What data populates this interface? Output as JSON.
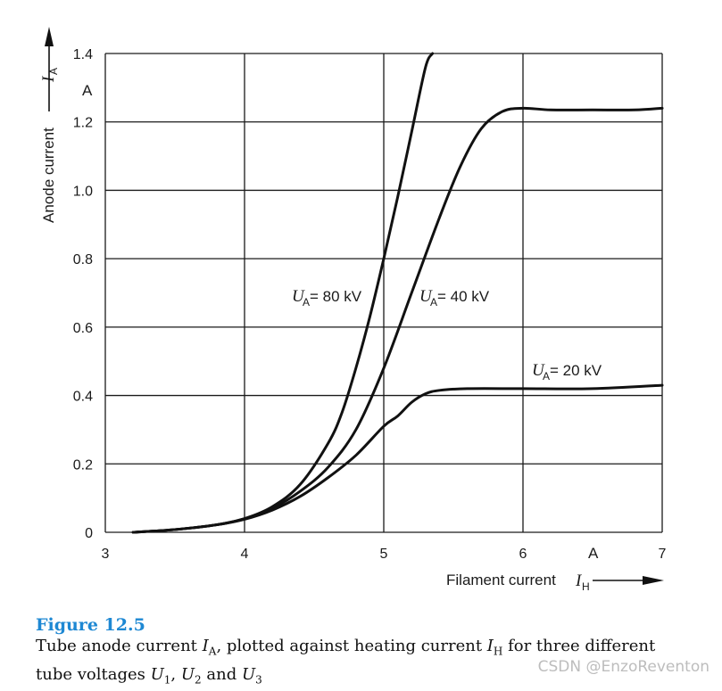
{
  "chart_data": {
    "type": "line",
    "title": "",
    "xlabel": "Filament current",
    "xlabel_symbol": "I",
    "xlabel_sub": "H",
    "x_unit": "A",
    "ylabel": "Anode current",
    "ylabel_symbol": "I",
    "ylabel_sub": "A",
    "y_unit": "A",
    "xlim": [
      3,
      7
    ],
    "ylim": [
      0,
      1.4
    ],
    "x_ticks": [
      "3",
      "4",
      "5",
      "6",
      "7"
    ],
    "y_ticks": [
      "0",
      "0.2",
      "0.4",
      "0.6",
      "0.8",
      "1.0",
      "1.2",
      "1.4"
    ],
    "grid": true,
    "series": [
      {
        "name": "UA = 80 kV",
        "label_var": "U",
        "label_sub": "A",
        "label_rest": " = 80 kV",
        "points": [
          [
            3.2,
            0.0
          ],
          [
            3.5,
            0.008
          ],
          [
            3.8,
            0.022
          ],
          [
            4.0,
            0.04
          ],
          [
            4.2,
            0.075
          ],
          [
            4.4,
            0.14
          ],
          [
            4.6,
            0.26
          ],
          [
            4.7,
            0.35
          ],
          [
            4.8,
            0.48
          ],
          [
            4.9,
            0.63
          ],
          [
            5.0,
            0.8
          ],
          [
            5.1,
            0.98
          ],
          [
            5.2,
            1.17
          ],
          [
            5.3,
            1.36
          ],
          [
            5.35,
            1.4
          ]
        ]
      },
      {
        "name": "UA = 40 kV",
        "label_var": "U",
        "label_sub": "A",
        "label_rest": " = 40 kV",
        "points": [
          [
            3.2,
            0.0
          ],
          [
            3.5,
            0.008
          ],
          [
            3.8,
            0.022
          ],
          [
            4.0,
            0.04
          ],
          [
            4.2,
            0.07
          ],
          [
            4.4,
            0.12
          ],
          [
            4.6,
            0.19
          ],
          [
            4.8,
            0.3
          ],
          [
            5.0,
            0.48
          ],
          [
            5.2,
            0.7
          ],
          [
            5.4,
            0.92
          ],
          [
            5.55,
            1.07
          ],
          [
            5.7,
            1.18
          ],
          [
            5.85,
            1.23
          ],
          [
            6.0,
            1.24
          ],
          [
            6.2,
            1.235
          ],
          [
            6.5,
            1.235
          ],
          [
            6.8,
            1.235
          ],
          [
            7.0,
            1.24
          ]
        ]
      },
      {
        "name": "UA = 20 kV",
        "label_var": "U",
        "label_sub": "A",
        "label_rest": " = 20 kV",
        "points": [
          [
            3.2,
            0.0
          ],
          [
            3.5,
            0.008
          ],
          [
            3.8,
            0.022
          ],
          [
            4.0,
            0.038
          ],
          [
            4.2,
            0.065
          ],
          [
            4.4,
            0.105
          ],
          [
            4.6,
            0.16
          ],
          [
            4.8,
            0.225
          ],
          [
            5.0,
            0.31
          ],
          [
            5.1,
            0.34
          ],
          [
            5.2,
            0.38
          ],
          [
            5.3,
            0.405
          ],
          [
            5.4,
            0.415
          ],
          [
            5.6,
            0.42
          ],
          [
            6.0,
            0.42
          ],
          [
            6.5,
            0.42
          ],
          [
            7.0,
            0.43
          ]
        ]
      }
    ]
  },
  "caption": {
    "title": "Figure 12.5",
    "line1_a": "Tube anode current ",
    "line1_b": ", plotted against heating current ",
    "line1_c": " for three different",
    "line2_a": "tube voltages ",
    "line2_b": " and ",
    "sym_I": "I",
    "sub_A": "A",
    "sub_H": "H",
    "sym_U": "U",
    "sub_1": "1",
    "sub_2": "2",
    "sub_3": "3",
    "comma": ", "
  },
  "watermark": "CSDN @EnzoReventon"
}
